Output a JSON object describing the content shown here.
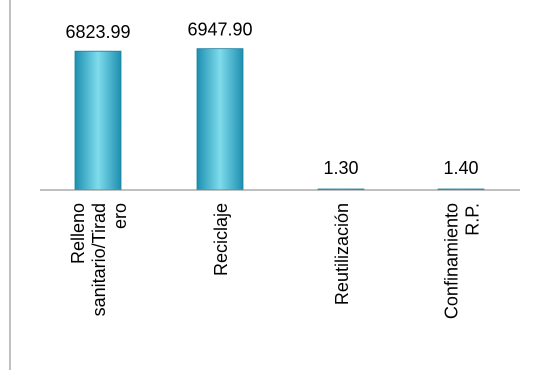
{
  "chart_data": {
    "type": "bar",
    "title": "",
    "categories": [
      "Relleno sanitario/Tiradero",
      "Reciclaje",
      "Reutilización",
      "Confinamiento R.P."
    ],
    "category_label_lines": [
      [
        "Relleno",
        "sanitario/Tirad",
        "ero"
      ],
      [
        "Reciclaje"
      ],
      [
        "Reutilización"
      ],
      [
        "Confinamiento",
        "R.P."
      ]
    ],
    "values": [
      6823.99,
      6947.9,
      1.3,
      1.4
    ],
    "data_labels": [
      "6823.99",
      "6947.90",
      "1.30",
      "1.40"
    ],
    "xlabel": "",
    "ylabel": "",
    "ylim": [
      0,
      7200
    ],
    "grid": false,
    "legend": "none",
    "colors": {
      "bar_top": "#7fdcec",
      "bar_mid": "#3bb8d2",
      "bar_bottom": "#1d8fb0",
      "bar_edge": "#1a7f9c",
      "baseline": "#808080",
      "frame": "#808080",
      "text": "#000000"
    }
  }
}
